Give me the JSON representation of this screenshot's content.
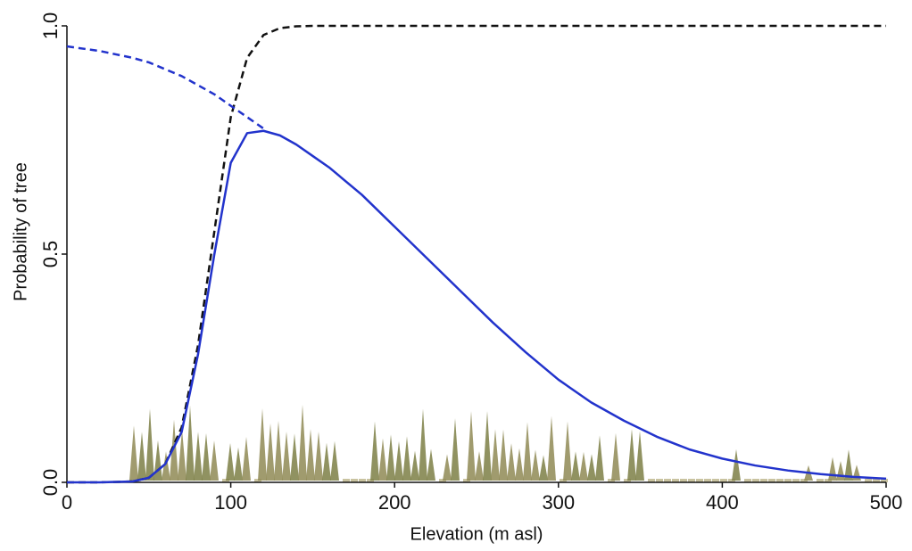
{
  "chart_data": {
    "type": "line",
    "x_label": "Elevation (m asl)",
    "y_label": "Probability of tree",
    "x": [
      0,
      20,
      40,
      50,
      60,
      70,
      80,
      90,
      100,
      110,
      120,
      130,
      140,
      150,
      160,
      180,
      200,
      220,
      240,
      260,
      280,
      300,
      320,
      340,
      360,
      380,
      400,
      420,
      440,
      460,
      480,
      500
    ],
    "series": [
      {
        "color": "#111111",
        "dashed": true,
        "values": [
          0,
          0,
          0.002,
          0.01,
          0.04,
          0.12,
          0.3,
          0.55,
          0.8,
          0.93,
          0.98,
          0.995,
          0.999,
          1,
          1,
          1,
          1,
          1,
          1,
          1,
          1,
          1,
          1,
          1,
          1,
          1,
          1,
          1,
          1,
          1,
          1,
          1
        ]
      },
      {
        "color": "#2233cc",
        "dashed": true,
        "values": [
          0.955,
          0.945,
          0.93,
          0.92,
          0.905,
          0.89,
          0.87,
          0.85,
          0.825,
          0.8,
          0.775,
          null,
          null,
          null,
          null,
          null,
          null,
          null,
          null,
          null,
          null,
          null,
          null,
          null,
          null,
          null,
          null,
          null,
          null,
          null,
          null,
          null
        ]
      },
      {
        "color": "#2233cc",
        "dashed": false,
        "values": [
          0,
          0,
          0.002,
          0.01,
          0.04,
          0.11,
          0.28,
          0.5,
          0.7,
          0.765,
          0.77,
          0.76,
          0.74,
          0.715,
          0.69,
          0.63,
          0.56,
          0.49,
          0.42,
          0.35,
          0.285,
          0.225,
          0.175,
          0.135,
          0.1,
          0.072,
          0.052,
          0.037,
          0.026,
          0.018,
          0.012,
          0.008
        ]
      }
    ],
    "xlim": [
      0,
      500
    ],
    "xticks": [
      0,
      100,
      200,
      300,
      400,
      500
    ],
    "ylim": [
      0,
      1
    ],
    "yticks": [
      {
        "value": 0,
        "label": "0.0"
      },
      {
        "value": 0.5,
        "label": "0.5"
      },
      {
        "value": 1,
        "label": "1.0"
      }
    ],
    "grid": false
  }
}
